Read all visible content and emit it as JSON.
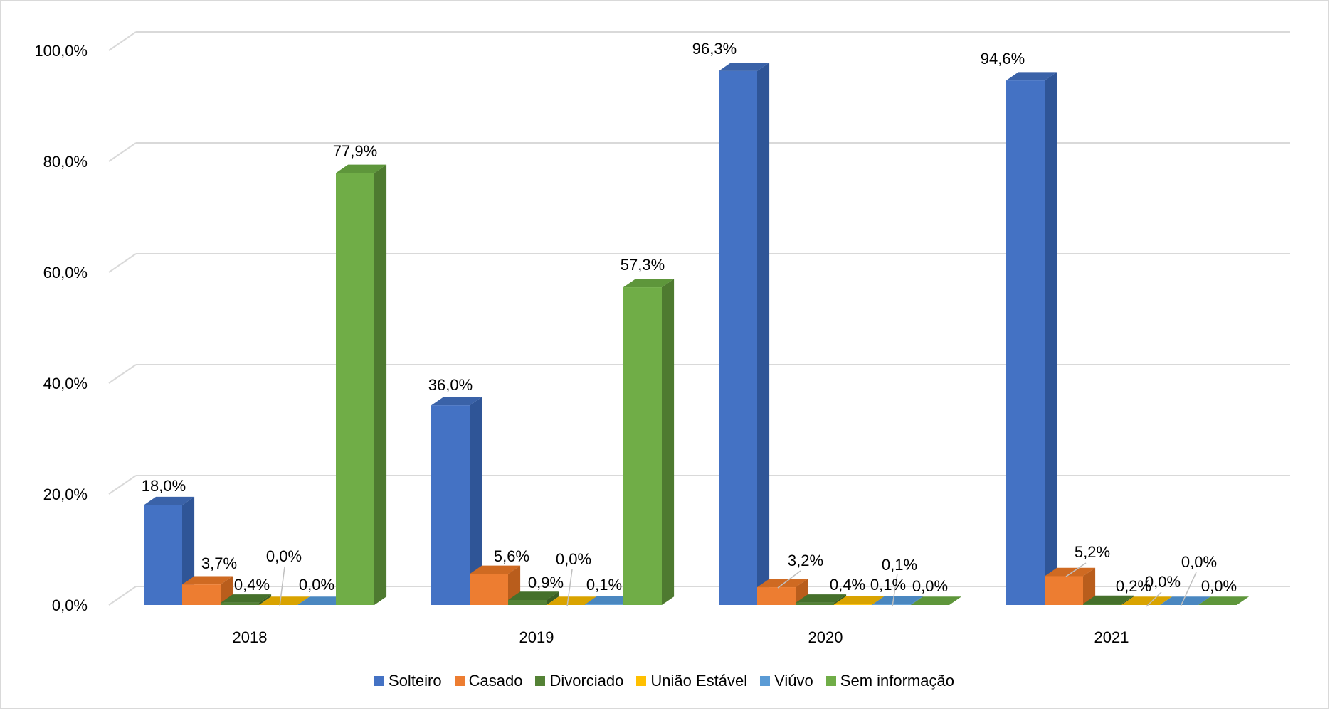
{
  "chart_data": {
    "type": "bar",
    "style": "3d-clustered-column",
    "categories": [
      "2018",
      "2019",
      "2020",
      "2021"
    ],
    "y_tick_labels": [
      "0,0%",
      "20,0%",
      "40,0%",
      "60,0%",
      "80,0%",
      "100,0%"
    ],
    "ylim": [
      0,
      100
    ],
    "grid": true,
    "legend_position": "bottom",
    "series": [
      {
        "name": "Solteiro",
        "color": "#4472C4",
        "side": "#2F5597",
        "top": "#3A62A8",
        "values": [
          18.0,
          36.0,
          96.3,
          94.6
        ],
        "labels": [
          "18,0%",
          "36,0%",
          "96,3%",
          "94,6%"
        ]
      },
      {
        "name": "Casado",
        "color": "#ED7D31",
        "side": "#B95D1C",
        "top": "#CF6A22",
        "values": [
          3.7,
          5.6,
          3.2,
          5.2
        ],
        "labels": [
          "3,7%",
          "5,6%",
          "3,2%",
          "5,2%"
        ]
      },
      {
        "name": "Divorciado",
        "color": "#548235",
        "side": "#3B5E24",
        "top": "#45702B",
        "values": [
          0.4,
          0.9,
          0.4,
          0.2
        ],
        "labels": [
          "0,4%",
          "0,9%",
          "0,4%",
          "0,2%"
        ]
      },
      {
        "name": "União Estável",
        "color": "#FFC000",
        "side": "#C09000",
        "top": "#D9A300",
        "values": [
          0.0,
          0.0,
          0.1,
          0.0
        ],
        "labels": [
          "0,0%",
          "0,0%",
          "0,1%",
          "0,0%"
        ]
      },
      {
        "name": "Viúvo",
        "color": "#5B9BD5",
        "side": "#3E78AC",
        "top": "#4A87C0",
        "values": [
          0.0,
          0.1,
          0.1,
          0.0
        ],
        "labels": [
          "0,0%",
          "0,1%",
          "0,1%",
          "0,0%"
        ]
      },
      {
        "name": "Sem informação",
        "color": "#70AD47",
        "side": "#4E7A30",
        "top": "#5E963B",
        "values": [
          77.9,
          57.3,
          0.0,
          0.0
        ],
        "labels": [
          "77,9%",
          "57,3%",
          "0,0%",
          "0,0%"
        ]
      }
    ]
  }
}
